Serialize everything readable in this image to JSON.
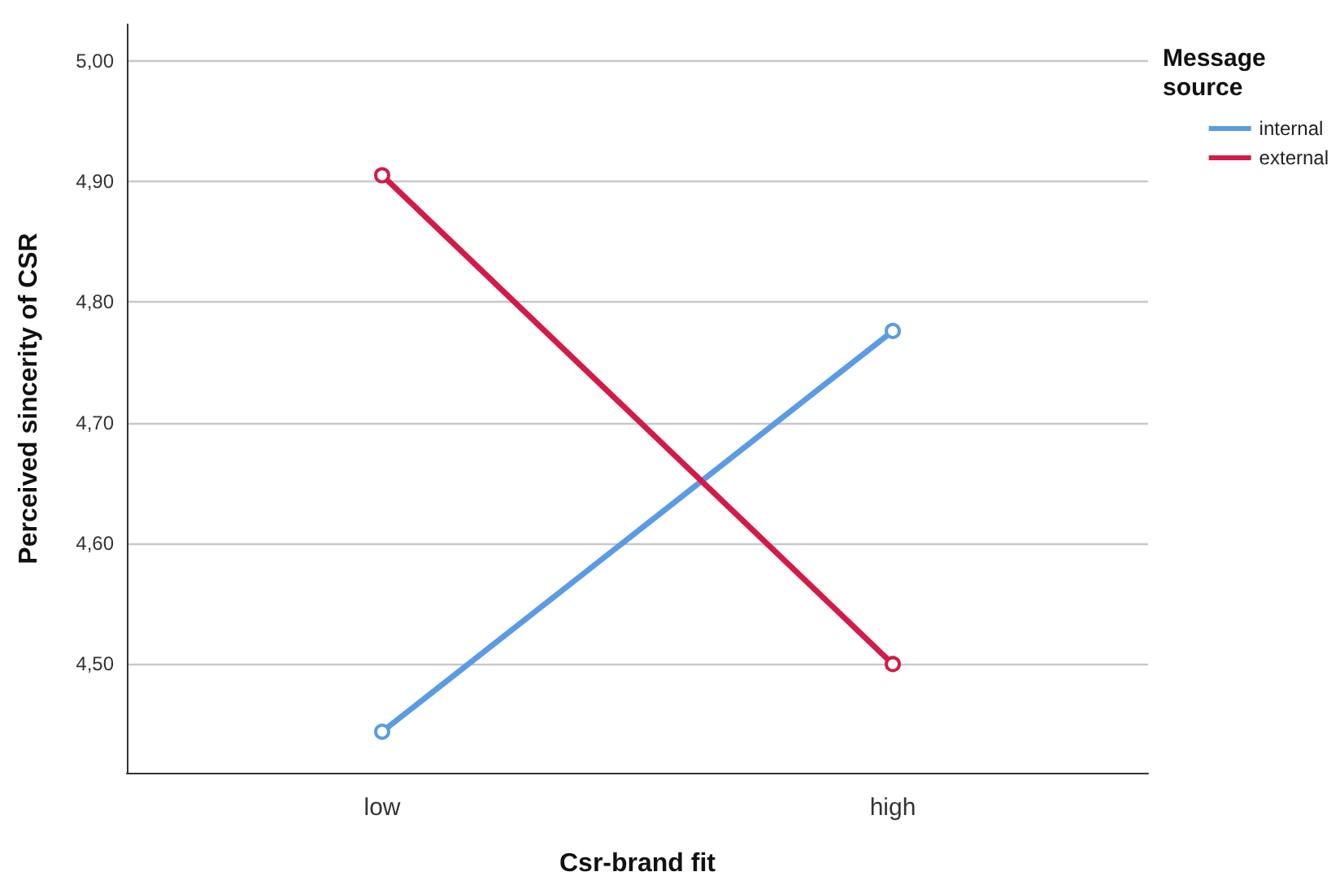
{
  "chart_data": {
    "type": "line",
    "xlabel": "Csr-brand fit",
    "ylabel": "Perceived sincerity of CSR",
    "legend_title": "Message source",
    "categories": [
      "low",
      "high"
    ],
    "series": [
      {
        "name": "internal",
        "color": "#5b9be6",
        "values": [
          4.444,
          4.776
        ]
      },
      {
        "name": "external",
        "color": "#d41a46",
        "values": [
          4.905,
          4.5
        ]
      }
    ],
    "ylim": [
      4.41,
      5.03
    ],
    "yticks": [
      {
        "value": 4.5,
        "label": "4,50"
      },
      {
        "value": 4.6,
        "label": "4,60"
      },
      {
        "value": 4.7,
        "label": "4,70"
      },
      {
        "value": 4.8,
        "label": "4,80"
      },
      {
        "value": 4.9,
        "label": "4,90"
      },
      {
        "value": 5.0,
        "label": "5,00"
      }
    ],
    "grid": "y",
    "legend": "top right",
    "marker": "circle",
    "line_style": "solid"
  }
}
